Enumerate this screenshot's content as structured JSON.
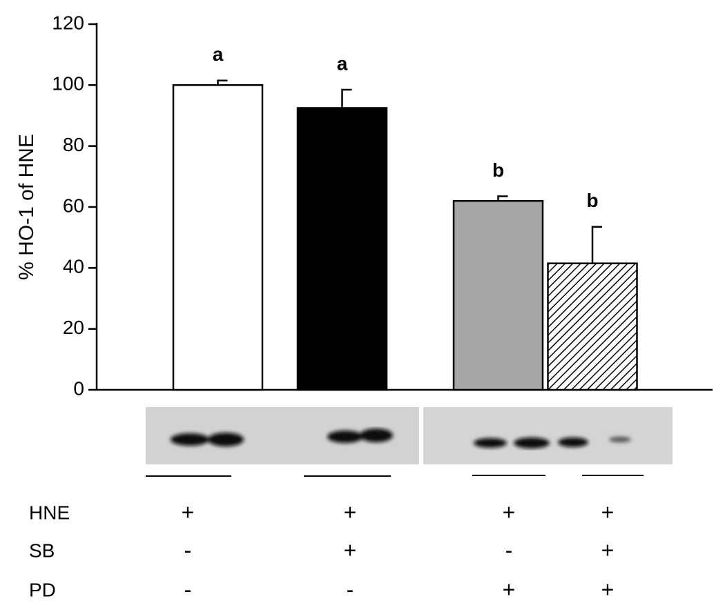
{
  "chart_data": {
    "type": "bar",
    "ylabel": "% HO-1 of HNE",
    "ylim": [
      0,
      120
    ],
    "yticks": [
      0,
      20,
      40,
      60,
      80,
      100,
      120
    ],
    "values": [
      100,
      92.5,
      62,
      41.5
    ],
    "errors": [
      1.5,
      6,
      1.5,
      12
    ],
    "annotations": [
      "a",
      "a",
      "b",
      "b"
    ],
    "colors": [
      "#ffffff",
      "#000000",
      "#a6a6a6",
      "#ffffff"
    ],
    "hatched": [
      false,
      false,
      false,
      true
    ],
    "treatments": [
      {
        "name": "HNE",
        "values": [
          "+",
          "+",
          "+",
          "+"
        ]
      },
      {
        "name": "SB",
        "values": [
          "-",
          "+",
          "-",
          "+"
        ]
      },
      {
        "name": "PD",
        "values": [
          "-",
          "-",
          "+",
          "+"
        ]
      }
    ]
  }
}
